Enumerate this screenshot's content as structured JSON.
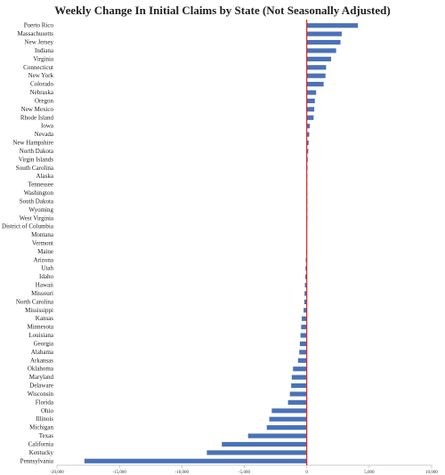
{
  "chart_data": {
    "type": "bar",
    "orientation": "horizontal",
    "title": "Weekly Change In Initial Claims by State (Not Seasonally Adjusted)",
    "xlabel": "",
    "ylabel": "",
    "xlim": [
      -20000,
      10000
    ],
    "x_ticks": [
      -20000,
      -15000,
      -10000,
      -5000,
      0,
      5000,
      10000
    ],
    "x_tick_labels": [
      "-20,000",
      "-15,000",
      "-10,000",
      "-5,000",
      "0",
      "5,000",
      "10,000"
    ],
    "grid": false,
    "legend": "none",
    "bar_color": "#4a72b8",
    "zero_line_color": "#e02020",
    "categories": [
      "Puerto Rico",
      "Massachusetts",
      "New Jersey",
      "Indiana",
      "Virginia",
      "Connecticut",
      "New York",
      "Colorado",
      "Nebraska",
      "Oregon",
      "New Mexico",
      "Rhode Island",
      "Iowa",
      "Nevada",
      "New Hampshire",
      "North Dakota",
      "Virgin Islands",
      "South Carolina",
      "Alaska",
      "Tennessee",
      "Washington",
      "South Dakota",
      "Wyoming",
      "West Virginia",
      "District of Columbia",
      "Montana",
      "Vermont",
      "Maine",
      "Arizona",
      "Utah",
      "Idaho",
      "Hawaii",
      "Missouri",
      "North Carolina",
      "Mississippi",
      "Kansas",
      "Minnesota",
      "Louisiana",
      "Georgia",
      "Alabama",
      "Arkansas",
      "Oklahoma",
      "Maryland",
      "Delaware",
      "Wisconsin",
      "Florida",
      "Ohio",
      "Illinois",
      "Michigan",
      "Texas",
      "California",
      "Kentucky",
      "Pennsylvania"
    ],
    "values": [
      4100,
      2800,
      2700,
      2350,
      1950,
      1550,
      1500,
      1350,
      750,
      650,
      600,
      550,
      250,
      200,
      150,
      120,
      80,
      60,
      40,
      30,
      20,
      15,
      10,
      5,
      -10,
      -20,
      -30,
      -50,
      -80,
      -100,
      -120,
      -150,
      -180,
      -200,
      -250,
      -400,
      -450,
      -500,
      -550,
      -600,
      -700,
      -1100,
      -1200,
      -1250,
      -1350,
      -1500,
      -2800,
      -3000,
      -3200,
      -4700,
      -6800,
      -8000,
      -17800
    ]
  }
}
